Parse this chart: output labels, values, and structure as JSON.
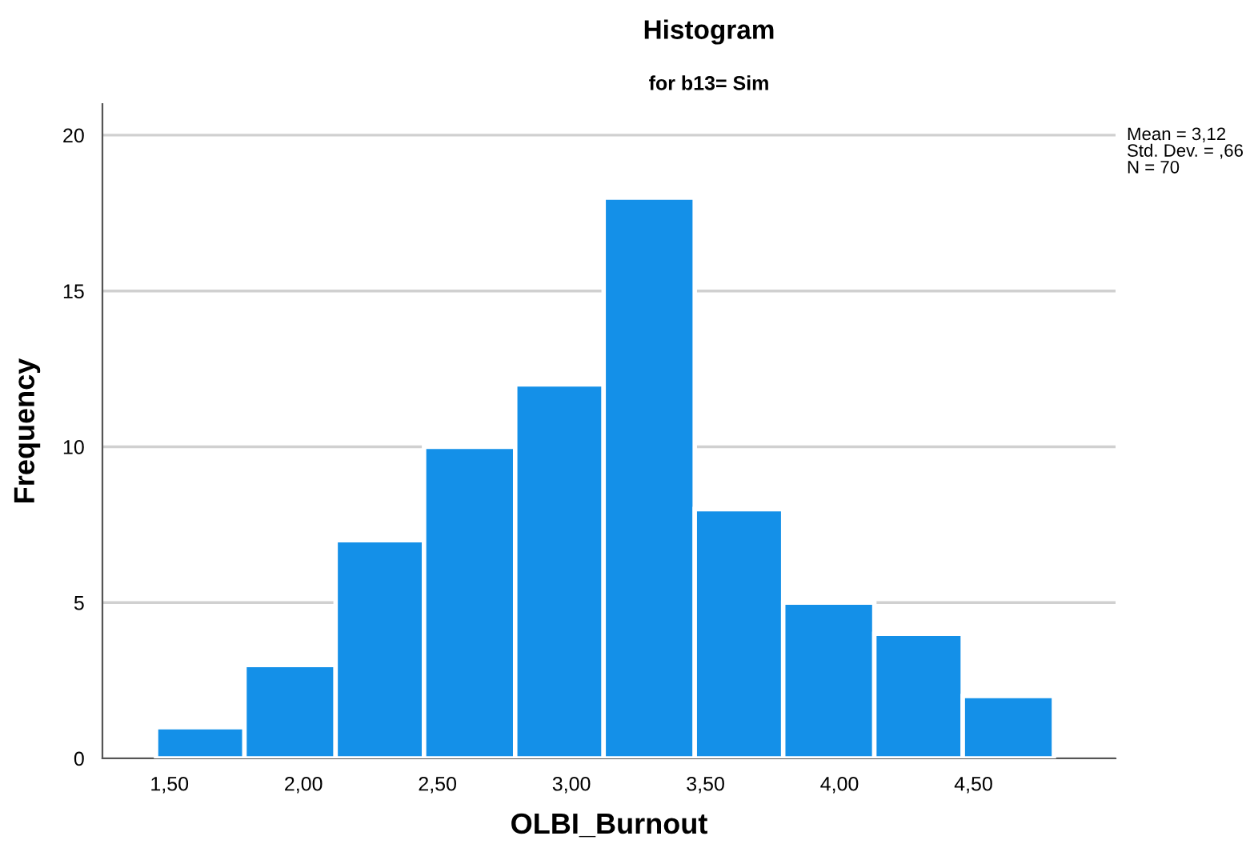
{
  "chart_data": {
    "type": "histogram",
    "title": "Histogram",
    "subtitle": "for b13= Sim",
    "xlabel": "OLBI_Burnout",
    "ylabel": "Frequency",
    "bins": [
      1.45,
      1.78,
      2.12,
      2.45,
      2.79,
      3.12,
      3.46,
      3.79,
      4.13,
      4.46,
      4.8
    ],
    "values": [
      1,
      3,
      7,
      10,
      12,
      18,
      8,
      5,
      4,
      2
    ],
    "color": "#1490e8",
    "xlim": [
      1.25,
      5.03
    ],
    "xticks": [
      {
        "value": 1.5,
        "label": "1,50"
      },
      {
        "value": 2.0,
        "label": "2,00"
      },
      {
        "value": 2.5,
        "label": "2,50"
      },
      {
        "value": 3.0,
        "label": "3,00"
      },
      {
        "value": 3.5,
        "label": "3,50"
      },
      {
        "value": 4.0,
        "label": "4,00"
      },
      {
        "value": 4.5,
        "label": "4,50"
      }
    ],
    "ylim": [
      0,
      21
    ],
    "yticks": [
      0,
      5,
      10,
      15,
      20
    ],
    "grid": "y",
    "annotations": [
      "Mean = 3,12",
      "Std. Dev. = ,66",
      "N = 70"
    ]
  }
}
